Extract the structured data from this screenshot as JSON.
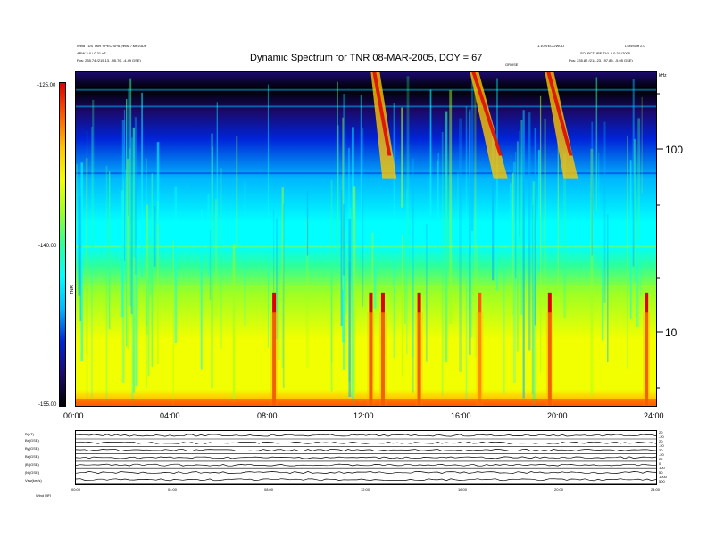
{
  "header": {
    "title": "Dynamic Spectrum for TNR 08-MAR-2005, DOY = 67",
    "left_line1": "Wind TDS TNR SPEC SPA (recs) / MFI/3DP",
    "left_line2": "ARW 3.0 / 0.31 nT",
    "left_line3": "Pos:    235.74 (215.13, -95.76, -4.49 GSE)",
    "right_top_a": "1.10 VEC 2WCD",
    "right_top_b": "LSN/Soft 2.0",
    "right_line2": "SOLPCTURE TVL 5.0 3/1/2005",
    "right_line3": "Pos:    235.82 (214.23, -97.85, -5.05 GSE)",
    "mid_label": "GROSE"
  },
  "colorbar": {
    "label": "TNR",
    "ticks": [
      "-125.00",
      "-140.00",
      "-155.00"
    ]
  },
  "right_axis": {
    "unit": "kHz",
    "ticks": [
      "100",
      "10"
    ]
  },
  "bottom_panel": {
    "labels": [
      "B(nT)",
      "Bx(GSE)",
      "By(GSE)",
      "Bz(GSE)",
      "|B|(GSE)",
      "|N|(GSE)",
      "Vsw(km/s)"
    ],
    "right_ticks": [
      "20",
      "-20",
      "20",
      "-20",
      "20",
      "-20",
      "20",
      "0",
      "100",
      "50",
      "1000",
      "500"
    ],
    "hours": [
      "00:00",
      "04:00",
      "08:00",
      "12:00",
      "16:00",
      "20:00",
      "24:00"
    ],
    "footer": "Wind MFI"
  },
  "chart_data": {
    "type": "heatmap",
    "title": "Dynamic Spectrum for TNR 08-MAR-2005, DOY = 67",
    "x_ticks": [
      "00:00",
      "04:00",
      "08:00",
      "12:00",
      "16:00",
      "20:00",
      "24:00"
    ],
    "xlim": [
      0,
      24
    ],
    "ylabel": "kHz",
    "y_scale": "log",
    "y_ticks": [
      10,
      100
    ],
    "ylim": [
      4,
      250
    ],
    "colorbar_range_db": [
      -155,
      -125
    ],
    "colormap": [
      "#000000",
      "#1a0a6e",
      "#0024d8",
      "#00b8ff",
      "#00ffff",
      "#2eff9a",
      "#9cff24",
      "#f2ff00",
      "#ffc400",
      "#ff5a00",
      "#e00000"
    ],
    "frequency_bands": [
      {
        "from_khz": 4,
        "to_khz": 6,
        "level": "orange-red"
      },
      {
        "from_khz": 6,
        "to_khz": 20,
        "level": "yellow-green"
      },
      {
        "from_khz": 20,
        "to_khz": 60,
        "level": "green-cyan"
      },
      {
        "from_khz": 60,
        "to_khz": 120,
        "level": "cyan-blue"
      },
      {
        "from_khz": 120,
        "to_khz": 250,
        "level": "dark blue"
      }
    ],
    "bursts": [
      {
        "time_h": 8.2,
        "level": "red"
      },
      {
        "time_h": 12.2,
        "level": "red"
      },
      {
        "time_h": 12.7,
        "level": "red"
      },
      {
        "time_h": 14.2,
        "level": "red"
      },
      {
        "time_h": 16.7,
        "level": "orange"
      },
      {
        "time_h": 19.6,
        "level": "red"
      },
      {
        "time_h": 23.6,
        "level": "red"
      }
    ]
  }
}
